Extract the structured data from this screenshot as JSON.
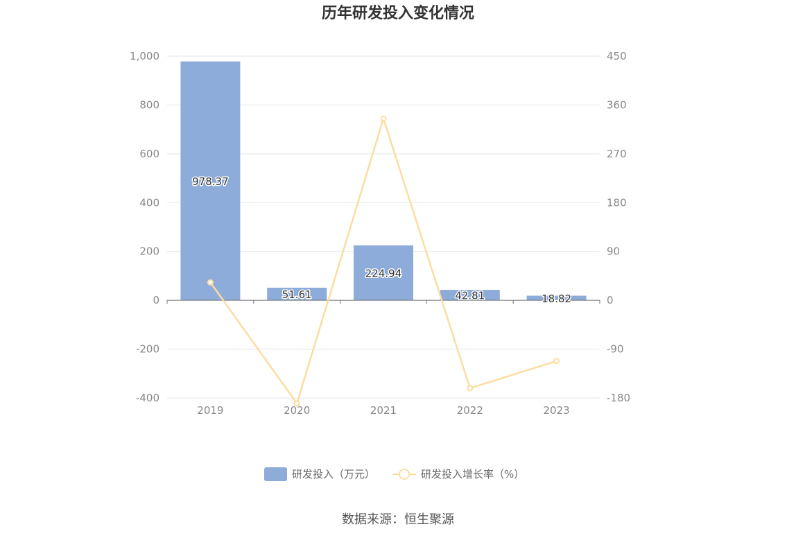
{
  "chart_data": {
    "type": "bar",
    "title": "历年研发投入变化情况",
    "categories": [
      "2019",
      "2020",
      "2021",
      "2022",
      "2023"
    ],
    "series": [
      {
        "name": "研发投入（万元）",
        "type": "bar",
        "axis": "left",
        "values": [
          978.37,
          51.61,
          224.94,
          42.81,
          18.82
        ],
        "labels": [
          "978.37",
          "51.61",
          "224.94",
          "42.81",
          "18.82"
        ],
        "color": "#8eacd9"
      },
      {
        "name": "研发投入增长率（%）",
        "type": "line",
        "axis": "right",
        "values": [
          33,
          -190,
          335,
          -162,
          -112
        ],
        "color": "#fddca0"
      }
    ],
    "y_left": {
      "ylim": [
        -400,
        1000
      ],
      "ticks": [
        -400,
        -200,
        0,
        200,
        400,
        600,
        800,
        1000
      ],
      "tick_labels": [
        "-400",
        "-200",
        "0",
        "200",
        "400",
        "600",
        "800",
        "1,000"
      ]
    },
    "y_right": {
      "ylim": [
        -180,
        450
      ],
      "ticks": [
        -180,
        -90,
        0,
        90,
        180,
        270,
        360,
        450
      ],
      "tick_labels": [
        "-180",
        "-90",
        "0",
        "90",
        "180",
        "270",
        "360",
        "450"
      ]
    },
    "grid": true,
    "legend_position": "bottom-center",
    "source": "数据来源：恒生聚源"
  }
}
